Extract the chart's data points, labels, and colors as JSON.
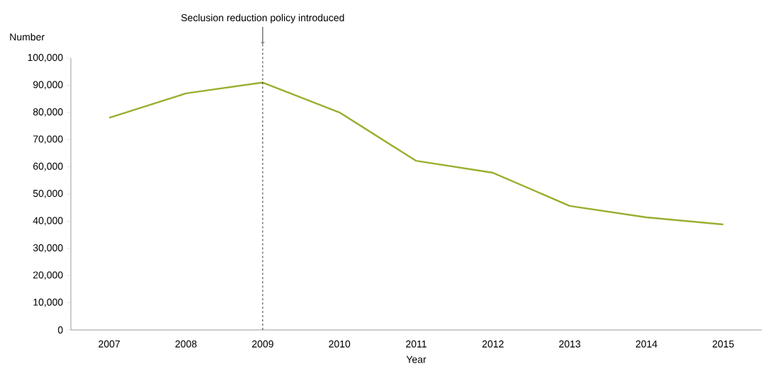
{
  "chart_data": {
    "type": "line",
    "xlabel": "Year",
    "ylabel": "Number",
    "categories": [
      "2007",
      "2008",
      "2009",
      "2010",
      "2011",
      "2012",
      "2013",
      "2014",
      "2015"
    ],
    "series": [
      {
        "color": "#9aae2f",
        "values": [
          78000,
          87000,
          91000,
          80000,
          62200,
          57800,
          45600,
          41400,
          38800
        ]
      }
    ],
    "ylim": [
      0,
      100000
    ],
    "yticks": [
      0,
      {
        "value": 10000,
        "label": "10,000"
      },
      {
        "value": 20000,
        "label": "20,000"
      },
      {
        "value": 30000,
        "label": "30,000"
      },
      {
        "value": 40000,
        "label": "40,000"
      },
      {
        "value": 50000,
        "label": "50,000"
      },
      {
        "value": 60000,
        "label": "60,000"
      },
      {
        "value": 70000,
        "label": "70,000"
      },
      {
        "value": 80000,
        "label": "80,000"
      },
      {
        "value": 90000,
        "label": "90,000"
      },
      {
        "value": 100000,
        "label": "100,000"
      }
    ],
    "ref_lines": [
      {
        "axis": "x",
        "value": "2009",
        "label": "Seclusion reduction policy introduced",
        "line_style": "dashed",
        "color": "#000000"
      }
    ],
    "grid": false,
    "marker": "none",
    "line_style": "solid"
  }
}
